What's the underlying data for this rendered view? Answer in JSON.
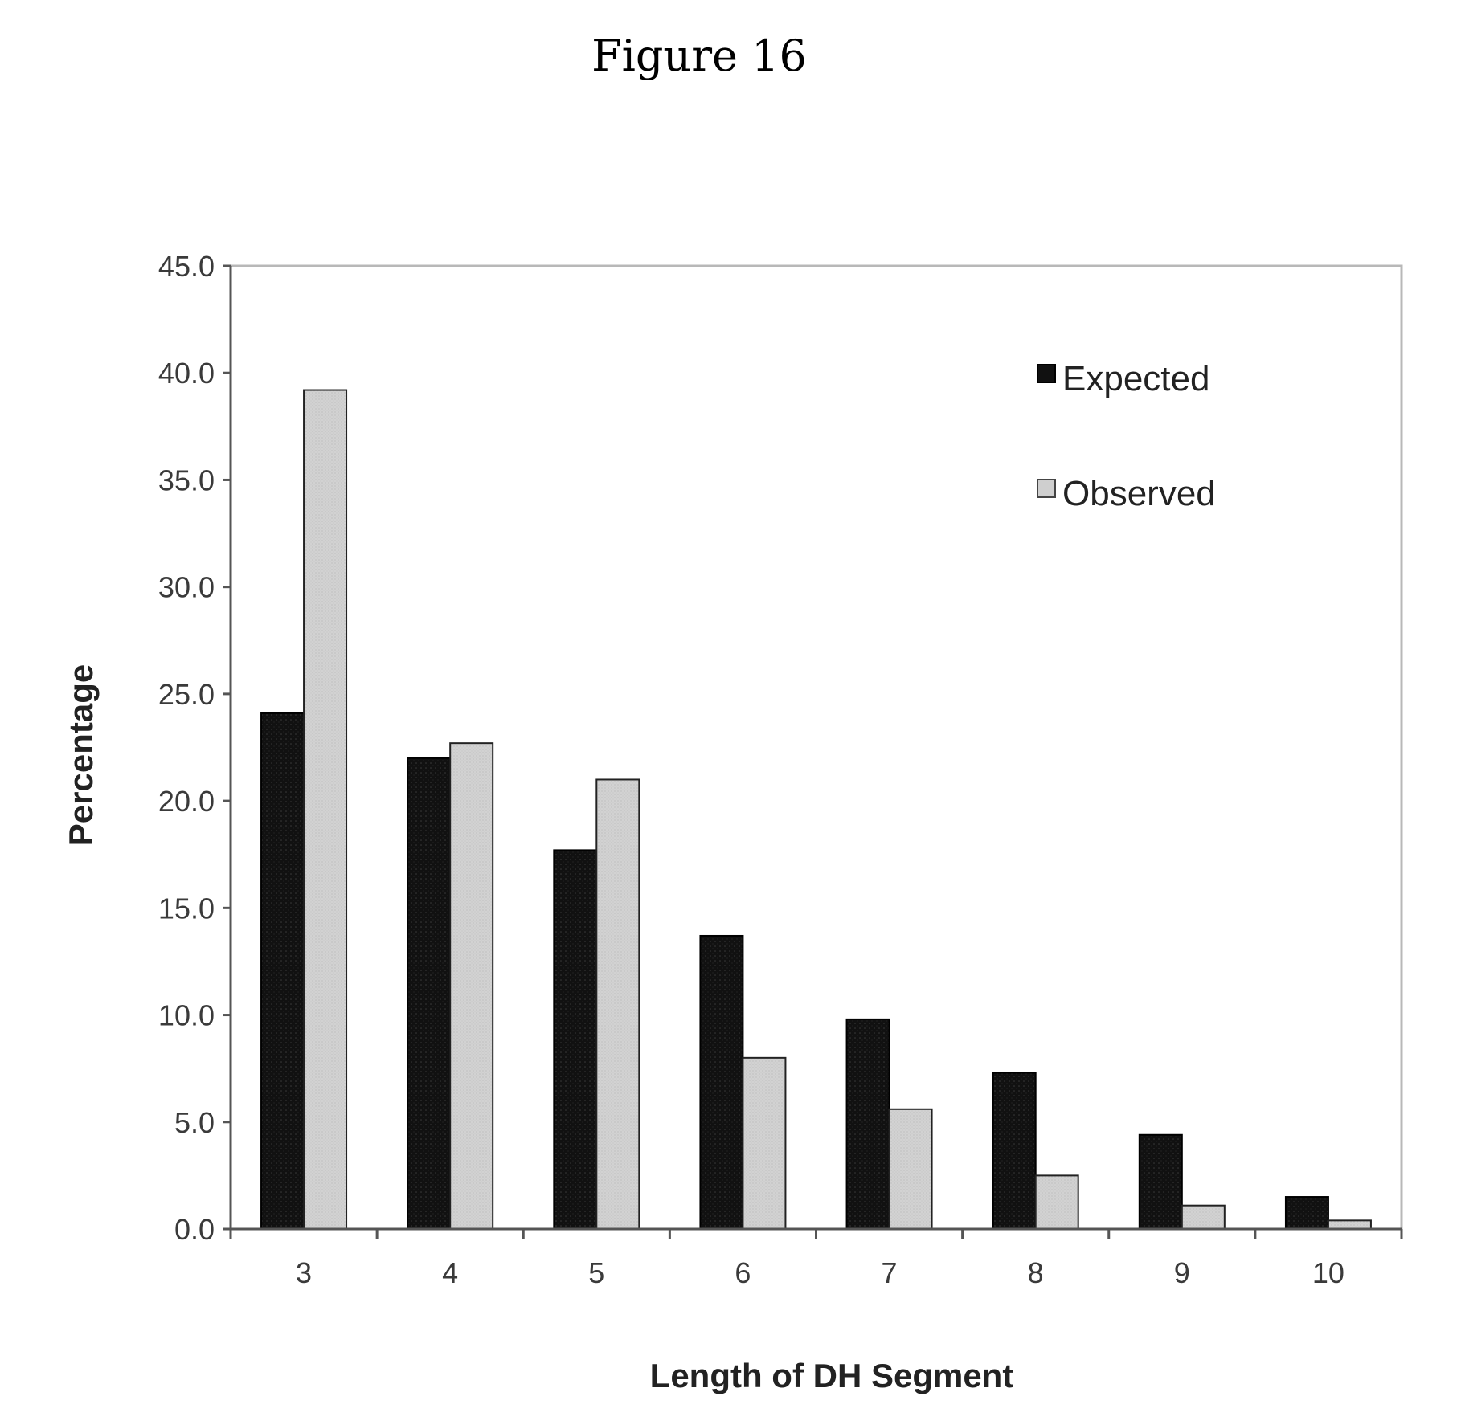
{
  "figure_title": "Figure 16",
  "chart_data": {
    "type": "bar",
    "categories": [
      "3",
      "4",
      "5",
      "6",
      "7",
      "8",
      "9",
      "10"
    ],
    "series": [
      {
        "name": "Expected",
        "values": [
          24.1,
          22.0,
          17.7,
          13.7,
          9.8,
          7.3,
          4.4,
          1.5
        ]
      },
      {
        "name": "Observed",
        "values": [
          39.2,
          22.7,
          21.0,
          8.0,
          5.6,
          2.5,
          1.1,
          0.4
        ]
      }
    ],
    "title": "",
    "xlabel": "Length of DH Segment",
    "ylabel": "Percentage",
    "ylim": [
      0,
      45
    ],
    "yticks": [
      "0.0",
      "5.0",
      "10.0",
      "15.0",
      "20.0",
      "25.0",
      "30.0",
      "35.0",
      "40.0",
      "45.0"
    ],
    "grid": false,
    "legend_position": "top-right",
    "colors": {
      "Expected": "#111111",
      "Observed": "#cfcfcf"
    }
  }
}
